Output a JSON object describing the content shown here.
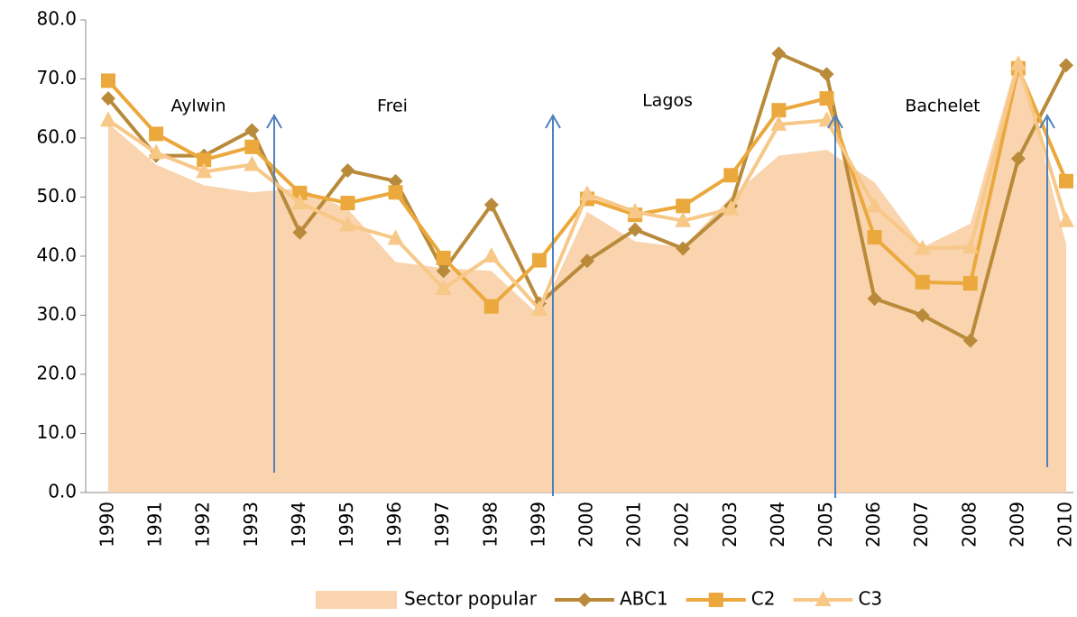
{
  "chart_data": {
    "type": "line",
    "categories": [
      "1990",
      "1991",
      "1992",
      "1993",
      "1994",
      "1995",
      "1996",
      "1997",
      "1998",
      "1999",
      "2000",
      "2001",
      "2002",
      "2003",
      "2004",
      "2005",
      "2006",
      "2007",
      "2008",
      "2009",
      "2010"
    ],
    "series": [
      {
        "name": "Sector popular",
        "kind": "area",
        "color": "#f9d4ae",
        "values": [
          62.5,
          55.5,
          52,
          50.8,
          51.5,
          48,
          39,
          38,
          37.5,
          30,
          47.5,
          42.5,
          41.5,
          50,
          57,
          58,
          52.5,
          41.5,
          45.5,
          74,
          42
        ]
      },
      {
        "name": "ABC1",
        "kind": "line",
        "marker": "diamond",
        "color": "#b98a3a",
        "values": [
          66.7,
          57,
          57,
          61.3,
          44,
          54.5,
          52.7,
          37.5,
          48.7,
          32,
          39.2,
          44.5,
          41.3,
          48.5,
          74.3,
          70.8,
          32.8,
          30,
          25.7,
          56.5,
          72.3
        ]
      },
      {
        "name": "C2",
        "kind": "line",
        "marker": "square",
        "color": "#eba83c",
        "values": [
          69.7,
          60.7,
          56.3,
          58.5,
          50.7,
          49,
          50.8,
          39.7,
          31.5,
          39.3,
          49.7,
          47,
          48.5,
          53.7,
          64.7,
          66.7,
          43.2,
          35.6,
          35.4,
          71.8,
          52.7
        ]
      },
      {
        "name": "C3",
        "kind": "line",
        "marker": "triangle",
        "color": "#f7c887",
        "values": [
          63,
          57.5,
          54.3,
          55.5,
          49,
          45.3,
          43,
          34.5,
          40,
          31,
          50.5,
          47.5,
          46,
          48,
          62.3,
          63,
          48.5,
          41.3,
          41.5,
          72.5,
          46
        ]
      }
    ],
    "ylim": [
      0,
      80
    ],
    "yticks": [
      {
        "value": 0,
        "label": "0.0"
      },
      {
        "value": 10,
        "label": "10.0"
      },
      {
        "value": 20,
        "label": "20.0"
      },
      {
        "value": 30,
        "label": "30.0"
      },
      {
        "value": 40,
        "label": "40.0"
      },
      {
        "value": 50,
        "label": "50.0"
      },
      {
        "value": 60,
        "label": "60.0"
      },
      {
        "value": 70,
        "label": "70.0"
      },
      {
        "value": 80,
        "label": "80.0"
      }
    ],
    "annotations": [
      "Aylwin",
      "Frei",
      "Lagos",
      "Bachelet"
    ],
    "legend": "bottom"
  }
}
